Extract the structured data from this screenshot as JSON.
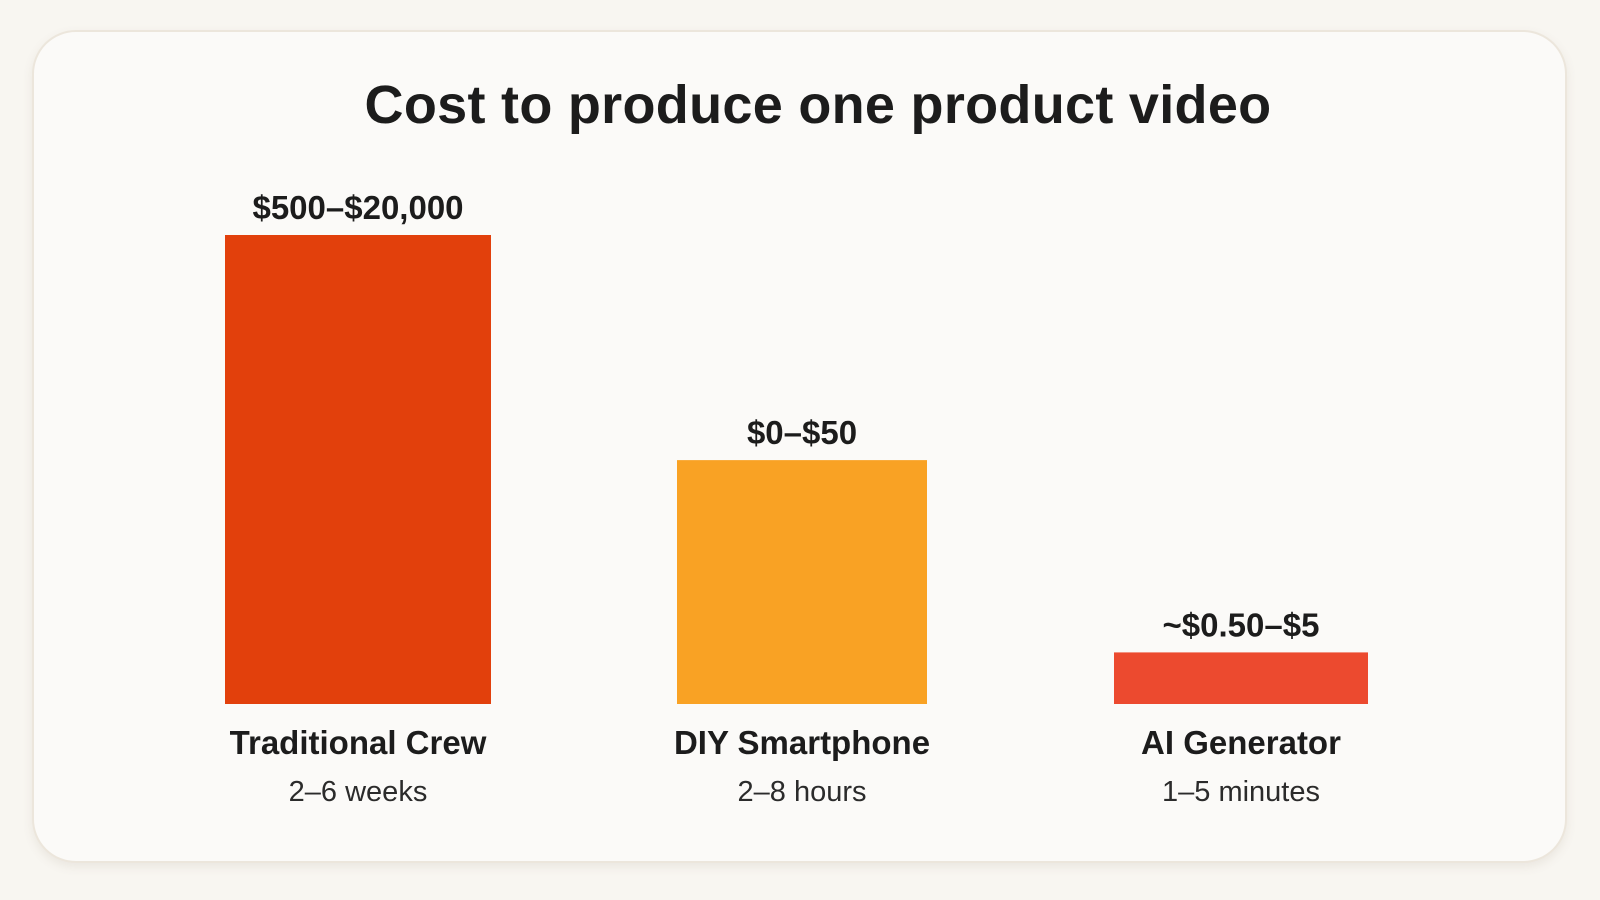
{
  "chart_data": {
    "type": "bar",
    "title": "Cost to produce one product video",
    "xlabel": "",
    "ylabel": "",
    "grid": false,
    "legend": "none",
    "categories": [
      "Traditional Crew",
      "DIY Smartphone",
      "AI Generator"
    ],
    "sublabels": [
      "2–6 weeks",
      "2–8 hours",
      "1–5 minutes"
    ],
    "value_labels": [
      "$500–$20,000",
      "$0–$50",
      "~$0.50–$5"
    ],
    "relative_heights": [
      1.0,
      0.52,
      0.11
    ],
    "colors": [
      "#e2400c",
      "#f9a224",
      "#ec4a2f"
    ]
  }
}
